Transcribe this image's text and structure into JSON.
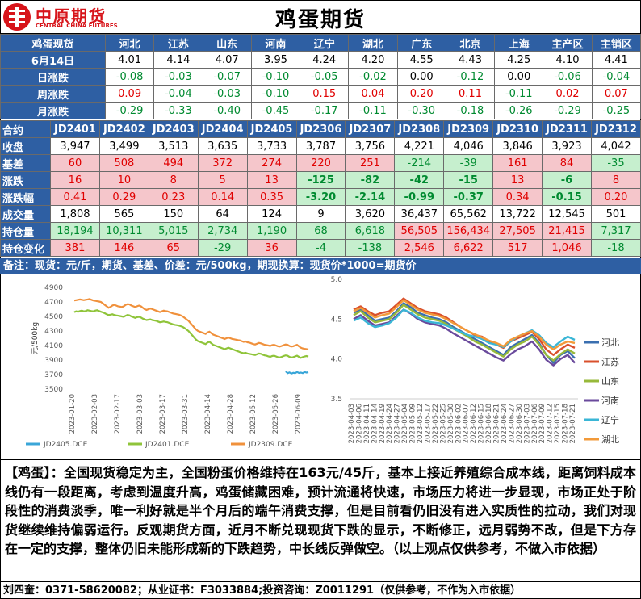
{
  "brand": {
    "cn": "中原期货",
    "en": "CENTRAL CHINA FUTURES"
  },
  "title": "鸡蛋期货",
  "spot": {
    "corner": "鸡蛋现货",
    "regions": [
      "河北",
      "江苏",
      "山东",
      "河南",
      "辽宁",
      "湖北",
      "广东",
      "北京",
      "上海",
      "主产区",
      "主销区"
    ],
    "rows": [
      {
        "label": "6月14日",
        "values": [
          "4.01",
          "4.14",
          "4.07",
          "3.95",
          "4.24",
          "4.20",
          "4.55",
          "4.43",
          "4.25",
          "4.10",
          "4.41"
        ],
        "kind": "price"
      },
      {
        "label": "日涨跌",
        "values": [
          "-0.08",
          "-0.03",
          "-0.07",
          "-0.10",
          "-0.05",
          "-0.02",
          "0.00",
          "-0.12",
          "0.00",
          "-0.06",
          "-0.04"
        ],
        "kind": "change"
      },
      {
        "label": "周涨跌",
        "values": [
          "0.09",
          "-0.04",
          "-0.03",
          "-0.10",
          "0.15",
          "0.04",
          "0.20",
          "0.11",
          "-0.11",
          "0.02",
          "0.07"
        ],
        "kind": "change"
      },
      {
        "label": "月涨跌",
        "values": [
          "-0.29",
          "-0.33",
          "-0.40",
          "-0.45",
          "-0.17",
          "-0.11",
          "-0.30",
          "-0.18",
          "-0.26",
          "-0.29",
          "-0.25"
        ],
        "kind": "change"
      }
    ]
  },
  "futures": {
    "corner": "合约",
    "contracts": [
      "JD2401",
      "JD2402",
      "JD2403",
      "JD2404",
      "JD2405",
      "JD2306",
      "JD2307",
      "JD2308",
      "JD2309",
      "JD2310",
      "JD2311",
      "JD2312"
    ],
    "rows": [
      {
        "label": "收盘",
        "values": [
          "3,947",
          "3,499",
          "3,513",
          "3,635",
          "3,733",
          "3,787",
          "3,756",
          "4,221",
          "4,046",
          "3,846",
          "3,923",
          "4,042"
        ],
        "kind": "plain"
      },
      {
        "label": "基差",
        "values": [
          "60",
          "508",
          "494",
          "372",
          "274",
          "220",
          "251",
          "-214",
          "-39",
          "161",
          "84",
          "-35"
        ],
        "kind": "shaded"
      },
      {
        "label": "涨跌",
        "values": [
          "16",
          "10",
          "8",
          "5",
          "13",
          "-125",
          "-82",
          "-42",
          "-15",
          "13",
          "-6",
          "8"
        ],
        "kind": "shaded"
      },
      {
        "label": "涨跌幅",
        "values": [
          "0.41",
          "0.29",
          "0.23",
          "0.14",
          "0.35",
          "-3.20",
          "-2.14",
          "-0.99",
          "-0.37",
          "0.34",
          "-0.15",
          "0.20"
        ],
        "kind": "shaded"
      },
      {
        "label": "成交量",
        "values": [
          "1,808",
          "565",
          "150",
          "64",
          "124",
          "9",
          "3,620",
          "36,437",
          "65,562",
          "13,722",
          "12,545",
          "501"
        ],
        "kind": "plain"
      },
      {
        "label": "持仓量",
        "values": [
          "18,194",
          "10,311",
          "5,015",
          "2,734",
          "1,190",
          "68",
          "6,618",
          "56,505",
          "156,434",
          "27,505",
          "21,415",
          "7,317"
        ],
        "kind": "oi"
      },
      {
        "label": "持仓变化",
        "values": [
          "381",
          "146",
          "65",
          "-29",
          "36",
          "-4",
          "-138",
          "2,546",
          "6,622",
          "517",
          "1,046",
          "-18"
        ],
        "kind": "shaded"
      }
    ]
  },
  "note": "备注：现货：元/斤，期货、基差、价差：元/500kg，期现换算：现货价*1000=期货价",
  "chart_data": [
    {
      "type": "line",
      "ylabel": "元/500kg",
      "ylim": [
        3500,
        4900
      ],
      "yticks": [
        "3500",
        "3700",
        "3900",
        "4100",
        "4300",
        "4500",
        "4700",
        "4900"
      ],
      "xticks": [
        "2023-01-20",
        "2023-02-03",
        "2023-02-17",
        "2023-03-03",
        "2023-03-17",
        "2023-03-31",
        "2023-04-14",
        "2023-04-28",
        "2023-05-12",
        "2023-05-26",
        "2023-06-09"
      ],
      "series": [
        {
          "name": "JD2405.DCE",
          "color": "#3aa6d8",
          "values": [
            null,
            null,
            null,
            null,
            null,
            null,
            null,
            null,
            null,
            null,
            null,
            null,
            null,
            null,
            null,
            null,
            null,
            null,
            null,
            null,
            null,
            null,
            null,
            null,
            null,
            null,
            null,
            null,
            null,
            null,
            null,
            null,
            null,
            null,
            null,
            null,
            null,
            null,
            null,
            null,
            null,
            null,
            null,
            null,
            null,
            null,
            null,
            null,
            null,
            null,
            null,
            null,
            null,
            null,
            null,
            null,
            null,
            null,
            null,
            null,
            null,
            null,
            null,
            null,
            null,
            null,
            null,
            null,
            null,
            null,
            null,
            null,
            null,
            null,
            null,
            null,
            null,
            null,
            null,
            null,
            null,
            null,
            null,
            null,
            null,
            null,
            null,
            null,
            null,
            null,
            null,
            null,
            null,
            null,
            null,
            null,
            null,
            null,
            null,
            null,
            null,
            null,
            null,
            null,
            null,
            null,
            null,
            null,
            null,
            null,
            null,
            null,
            3745,
            3720,
            3730,
            3715,
            3725,
            3720,
            3735,
            3722,
            3728,
            3720,
            3735,
            3728,
            3733
          ]
        },
        {
          "name": "JD2401.DCE",
          "color": "#8fc43a",
          "values": [
            4560,
            4570,
            4565,
            4575,
            4580,
            4570,
            4575,
            4585,
            4580,
            4575,
            4570,
            4580,
            4585,
            4575,
            4565,
            4555,
            4545,
            4530,
            4520,
            4525,
            4530,
            4520,
            4515,
            4510,
            4505,
            4500,
            4495,
            4510,
            4520,
            4515,
            4500,
            4490,
            4480,
            4490,
            4495,
            4485,
            4470,
            4460,
            4450,
            4455,
            4460,
            4450,
            4445,
            4440,
            4430,
            4420,
            4425,
            4430,
            4425,
            4420,
            4410,
            4400,
            4390,
            4385,
            4380,
            4375,
            4365,
            4355,
            4340,
            4320,
            4300,
            4270,
            4240,
            4210,
            4180,
            4160,
            4150,
            4140,
            4130,
            4120,
            4140,
            4150,
            4130,
            4110,
            4100,
            4090,
            4080,
            4070,
            4060,
            4050,
            4060,
            4070,
            4060,
            4050,
            4040,
            4030,
            4020,
            4010,
            4000,
            3995,
            4000,
            3990,
            3985,
            3980,
            3975,
            3970,
            3980,
            3990,
            3985,
            3975,
            3965,
            3960,
            3950,
            3945,
            3955,
            3960,
            3950,
            3940,
            3935,
            3945,
            3955,
            3965,
            3960,
            3945,
            3935,
            3940,
            3950,
            3960,
            3945,
            3930,
            3940,
            3950,
            3955,
            3947
          ]
        },
        {
          "name": "JD2309.DCE",
          "color": "#f0913c",
          "values": [
            4720,
            4725,
            4730,
            4735,
            4730,
            4725,
            4730,
            4735,
            4740,
            4730,
            4720,
            4715,
            4710,
            4705,
            4700,
            4680,
            4660,
            4640,
            4620,
            4630,
            4650,
            4660,
            4650,
            4640,
            4635,
            4630,
            4640,
            4660,
            4670,
            4665,
            4650,
            4640,
            4630,
            4640,
            4650,
            4640,
            4620,
            4600,
            4590,
            4600,
            4610,
            4600,
            4590,
            4580,
            4570,
            4560,
            4570,
            4580,
            4575,
            4570,
            4560,
            4550,
            4540,
            4535,
            4530,
            4525,
            4515,
            4500,
            4480,
            4460,
            4440,
            4410,
            4380,
            4350,
            4320,
            4300,
            4290,
            4280,
            4270,
            4260,
            4280,
            4290,
            4270,
            4250,
            4240,
            4230,
            4220,
            4210,
            4200,
            4190,
            4200,
            4210,
            4200,
            4190,
            4185,
            4180,
            4175,
            4170,
            4160,
            4150,
            4155,
            4145,
            4140,
            4130,
            4120,
            4115,
            4125,
            4135,
            4130,
            4120,
            4110,
            4105,
            4100,
            4095,
            4105,
            4110,
            4100,
            4090,
            4085,
            4095,
            4105,
            4115,
            4110,
            4095,
            4085,
            4090,
            4100,
            4110,
            4090,
            4070,
            4060,
            4055,
            4050,
            4046
          ]
        }
      ]
    },
    {
      "type": "line",
      "ylim": [
        3.5,
        5.0
      ],
      "yticks": [
        "3.5",
        "4.0",
        "4.5",
        "5.0"
      ],
      "xticks": [
        "2023-04-03",
        "2023-04-06",
        "2023-04-11",
        "2023-04-14",
        "2023-04-19",
        "2023-04-24",
        "2023-04-27",
        "2023-05-04",
        "2023-05-09",
        "2023-05-12",
        "2023-05-17",
        "2023-05-22",
        "2023-05-25",
        "2023-05-30",
        "2023-06-02",
        "2023-06-07",
        "2023-06-12",
        "2023-06-15",
        "2023-06-18",
        "2023-06-21",
        "2023-06-24",
        "2023-06-27",
        "2023-06-30",
        "2023-07-03",
        "2023-07-06",
        "2023-07-09",
        "2023-07-12",
        "2023-07-15",
        "2023-07-18",
        "2023-07-21"
      ],
      "legend": [
        "河北",
        "江苏",
        "山东",
        "河南",
        "辽宁",
        "湖北"
      ],
      "series": [
        {
          "name": "河北",
          "color": "#3a6fb0",
          "values": [
            4.58,
            4.62,
            4.55,
            4.48,
            4.5,
            4.52,
            4.6,
            4.7,
            4.65,
            4.58,
            4.55,
            4.52,
            4.5,
            4.46,
            4.4,
            4.35,
            4.3,
            4.25,
            4.2,
            4.15,
            4.1,
            4.05,
            4.15,
            4.2,
            4.25,
            4.3,
            4.2,
            4.05,
            3.95,
            4.05,
            4.1,
            4.01
          ]
        },
        {
          "name": "江苏",
          "color": "#d9502c",
          "values": [
            4.62,
            4.66,
            4.6,
            4.55,
            4.58,
            4.6,
            4.68,
            4.76,
            4.7,
            4.64,
            4.6,
            4.58,
            4.56,
            4.52,
            4.46,
            4.4,
            4.35,
            4.3,
            4.28,
            4.22,
            4.18,
            4.14,
            4.22,
            4.26,
            4.3,
            4.34,
            4.25,
            4.12,
            4.05,
            4.12,
            4.18,
            4.14
          ]
        },
        {
          "name": "山东",
          "color": "#97b93a",
          "values": [
            4.55,
            4.6,
            4.52,
            4.46,
            4.48,
            4.5,
            4.58,
            4.68,
            4.62,
            4.56,
            4.52,
            4.5,
            4.48,
            4.44,
            4.38,
            4.33,
            4.28,
            4.22,
            4.18,
            4.13,
            4.08,
            4.03,
            4.12,
            4.18,
            4.22,
            4.28,
            4.18,
            4.05,
            3.98,
            4.06,
            4.12,
            4.07
          ]
        },
        {
          "name": "河南",
          "color": "#6a4a9c",
          "values": [
            4.5,
            4.55,
            4.48,
            4.42,
            4.44,
            4.46,
            4.54,
            4.62,
            4.57,
            4.5,
            4.46,
            4.44,
            4.42,
            4.38,
            4.32,
            4.27,
            4.22,
            4.17,
            4.12,
            4.07,
            4.02,
            3.98,
            4.06,
            4.12,
            4.16,
            4.22,
            4.12,
            3.99,
            3.92,
            4.0,
            4.05,
            3.95
          ]
        },
        {
          "name": "辽宁",
          "color": "#3ab6d6",
          "values": [
            4.48,
            4.52,
            4.45,
            4.4,
            4.42,
            4.45,
            4.52,
            4.62,
            4.58,
            4.52,
            4.48,
            4.46,
            4.45,
            4.42,
            4.38,
            4.34,
            4.3,
            4.28,
            4.25,
            4.2,
            4.18,
            4.15,
            4.22,
            4.28,
            4.32,
            4.36,
            4.3,
            4.2,
            4.15,
            4.22,
            4.28,
            4.24
          ]
        },
        {
          "name": "湖北",
          "color": "#f29a3a",
          "values": [
            4.6,
            4.64,
            4.58,
            4.52,
            4.55,
            4.57,
            4.65,
            4.74,
            4.68,
            4.62,
            4.58,
            4.56,
            4.54,
            4.5,
            4.45,
            4.4,
            4.35,
            4.31,
            4.27,
            4.23,
            4.2,
            4.16,
            4.24,
            4.28,
            4.32,
            4.35,
            4.28,
            4.18,
            4.12,
            4.18,
            4.22,
            4.2
          ]
        }
      ]
    }
  ],
  "commentary": "【鸡蛋】：全国现货稳定为主，全国粉蛋价格维持在163元/45斤，基本上接近养殖综合成本线，距离饲料成本线仍有一段距离，考虑到温度升高，鸡蛋储藏困难，预计流通将快速，市场压力将进一步显现，市场正处于阶段性的消费淡季，唯一利好就是半个月后的端午消费支撑，但是目前看仍旧没有进入实质性的拉动，我们对现货继续维持偏弱运行。反观期货方面，近月不断兑现现货下跌的显示，不断修正，远月弱势不改，但是下方存在一定的支撑，整体仍旧未能形成新的下跌趋势，中长线反弹做空。（以上观点仅供参考，不做入市依据）",
  "footer": "刘四奎：0371-58620082；从业证书：F3033884;投资咨询：Z0011291（仅供参考，不作为入市依据）"
}
